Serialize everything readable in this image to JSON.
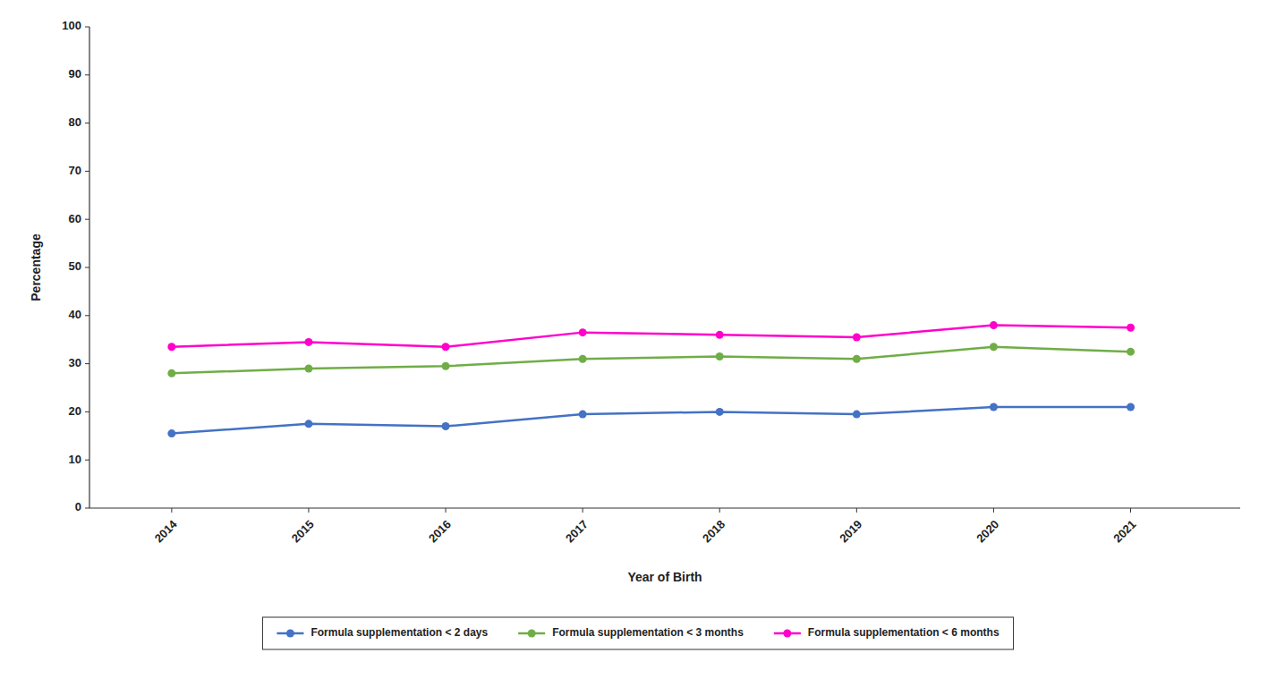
{
  "chart_data": {
    "type": "line",
    "xlabel": "Year of Birth",
    "ylabel": "Percentage",
    "x": [
      2014,
      2015,
      2016,
      2017,
      2018,
      2019,
      2020,
      2021
    ],
    "xlim": [
      2013.4,
      2021.8
    ],
    "xticks": [
      2014,
      2015,
      2016,
      2017,
      2018,
      2019,
      2020,
      2021
    ],
    "ylim": [
      0,
      100
    ],
    "yticks": [
      0,
      10,
      20,
      30,
      40,
      50,
      60,
      70,
      80,
      90,
      100
    ],
    "grid": false,
    "legend": "bottom",
    "series": [
      {
        "name": "Formula supplementation < 2 days",
        "color": "#4472C4",
        "marker": "circle",
        "values": [
          15.5,
          17.5,
          17.0,
          19.5,
          20.0,
          19.5,
          21.0,
          21.0
        ]
      },
      {
        "name": "Formula supplementation < 3 months",
        "color": "#70AD47",
        "marker": "circle",
        "values": [
          28.0,
          29.0,
          29.5,
          31.0,
          31.5,
          31.0,
          33.5,
          32.5
        ]
      },
      {
        "name": "Formula supplementation < 6 months",
        "color": "#FF00CC",
        "marker": "circle",
        "values": [
          33.5,
          34.5,
          33.5,
          36.5,
          36.0,
          35.5,
          38.0,
          37.5
        ]
      }
    ]
  }
}
